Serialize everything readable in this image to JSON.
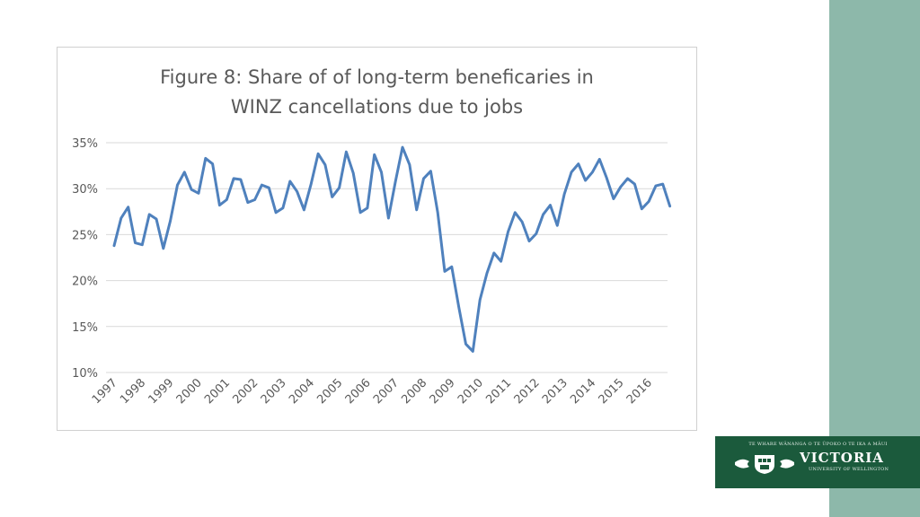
{
  "slide": {
    "accent_band_color": "#8db8aa",
    "logo": {
      "motto": "TE WHARE WĀNANGA O TE ŪPOKO O TE IKA A MĀUI",
      "name": "VICTORIA",
      "subtitle": "UNIVERSITY OF WELLINGTON",
      "background": "#1b5a3c",
      "icon": "university-crest-icon"
    }
  },
  "chart_data": {
    "type": "line",
    "title_lines": [
      "Figure 8: Share of of long-term beneficaries in",
      "WINZ cancellations due to jobs"
    ],
    "xlabel": "",
    "ylabel": "",
    "ylim": [
      0.1,
      0.35
    ],
    "yticks": [
      "10%",
      "15%",
      "20%",
      "25%",
      "30%",
      "35%"
    ],
    "x_tick_labels": [
      "1997",
      "1998",
      "1999",
      "2000",
      "2001",
      "2002",
      "2003",
      "2004",
      "2005",
      "2006",
      "2007",
      "2008",
      "2009",
      "2010",
      "2011",
      "2012",
      "2013",
      "2014",
      "2015",
      "2016"
    ],
    "x_frequency": "quarterly",
    "grid": "horizontal",
    "legend": "none",
    "series": [
      {
        "color": "#4f81bd",
        "values": [
          0.238,
          0.268,
          0.28,
          0.241,
          0.239,
          0.272,
          0.267,
          0.235,
          0.265,
          0.304,
          0.318,
          0.299,
          0.295,
          0.333,
          0.327,
          0.282,
          0.288,
          0.311,
          0.31,
          0.285,
          0.288,
          0.304,
          0.301,
          0.274,
          0.279,
          0.308,
          0.297,
          0.277,
          0.305,
          0.338,
          0.326,
          0.291,
          0.301,
          0.34,
          0.317,
          0.274,
          0.279,
          0.337,
          0.318,
          0.268,
          0.308,
          0.345,
          0.326,
          0.277,
          0.311,
          0.319,
          0.274,
          0.21,
          0.215,
          0.171,
          0.131,
          0.123,
          0.179,
          0.208,
          0.23,
          0.221,
          0.253,
          0.274,
          0.264,
          0.243,
          0.251,
          0.272,
          0.282,
          0.26,
          0.294,
          0.318,
          0.327,
          0.309,
          0.318,
          0.332,
          0.312,
          0.289,
          0.302,
          0.311,
          0.305,
          0.278,
          0.286,
          0.303,
          0.305,
          0.281
        ]
      }
    ]
  }
}
